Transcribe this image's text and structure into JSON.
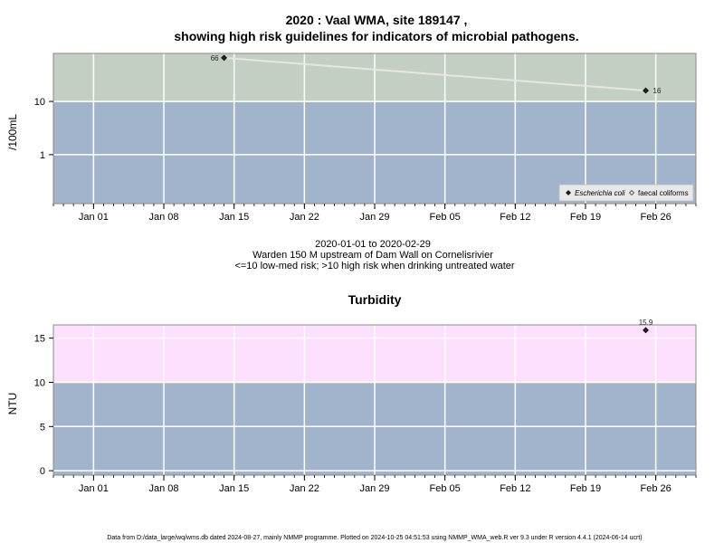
{
  "chart_data": [
    {
      "type": "line",
      "title_line1": "2020 : Vaal WMA, site 189147 ,",
      "title_line2": "showing high risk guidelines for indicators of microbial pathogens.",
      "ylabel": "/100mL",
      "y_scale": "log",
      "ylim": [
        0.12,
        80
      ],
      "yticks": [
        1,
        10
      ],
      "ytick_labels": [
        "1",
        "10"
      ],
      "xlim": [
        "2019-12-28",
        "2020-03-01"
      ],
      "xticks": [
        "2020-01-01",
        "2020-01-08",
        "2020-01-15",
        "2020-01-22",
        "2020-01-29",
        "2020-02-05",
        "2020-02-12",
        "2020-02-19",
        "2020-02-26"
      ],
      "xtick_labels": [
        "Jan 01",
        "Jan 08",
        "Jan 15",
        "Jan 22",
        "Jan 29",
        "Feb 05",
        "Feb 12",
        "Feb 19",
        "Feb 26"
      ],
      "grid": true,
      "bands": [
        {
          "from": 0.12,
          "to": 10,
          "color": "#a2b4cc"
        },
        {
          "from": 10,
          "to": 80,
          "color": "#c2cfc2"
        }
      ],
      "series": [
        {
          "name": "Escherichia coli",
          "x": [
            "2020-01-14",
            "2020-02-25"
          ],
          "y": [
            66,
            16
          ],
          "labels": [
            "66",
            "16"
          ],
          "marker": "filled-diamond"
        },
        {
          "name": "faecal coliforms",
          "x": [],
          "y": [],
          "marker": "open-diamond"
        }
      ],
      "legend_position": "bottom-right",
      "caption_lines": [
        "2020-01-01 to 2020-02-29",
        "Warden 150 M upstream of Dam Wall on Cornelisrivier",
        "<=10 low-med risk; >10 high risk when drinking untreated water"
      ]
    },
    {
      "type": "scatter",
      "title": "Turbidity",
      "ylabel": "NTU",
      "ylim": [
        -0.5,
        16.5
      ],
      "yticks": [
        0,
        5,
        10,
        15
      ],
      "ytick_labels": [
        "0",
        "5",
        "10",
        "15"
      ],
      "xlim": [
        "2019-12-28",
        "2020-03-01"
      ],
      "xticks": [
        "2020-01-01",
        "2020-01-08",
        "2020-01-15",
        "2020-01-22",
        "2020-01-29",
        "2020-02-05",
        "2020-02-12",
        "2020-02-19",
        "2020-02-26"
      ],
      "xtick_labels": [
        "Jan 01",
        "Jan 08",
        "Jan 15",
        "Jan 22",
        "Jan 29",
        "Feb 05",
        "Feb 12",
        "Feb 19",
        "Feb 26"
      ],
      "grid": true,
      "bands": [
        {
          "from": -0.5,
          "to": 10,
          "color": "#a2b4cc"
        },
        {
          "from": 10,
          "to": 16.5,
          "color": "#fde0fd"
        }
      ],
      "series": [
        {
          "x": [
            "2020-02-25"
          ],
          "y": [
            15.9
          ],
          "labels": [
            "15.9"
          ],
          "marker": "filled-diamond"
        }
      ]
    }
  ],
  "footer": "Data from D:/data_large/wq/wms.db dated 2024-08-27, mainly NMMP programme. Plotted on 2024-10-25 04:51:53 using NMMP_WMA_web.R ver 9.3 under R version 4.4.1 (2024-06-14 ucrt)"
}
